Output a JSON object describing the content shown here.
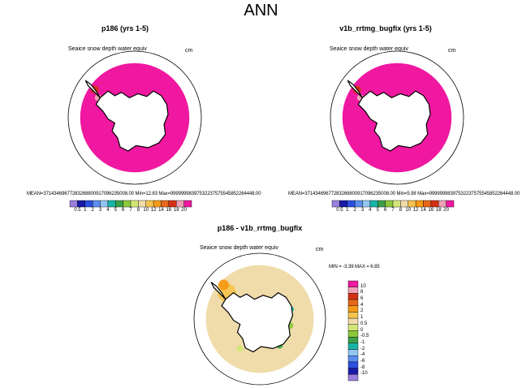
{
  "chart_data": {
    "type": "map",
    "title": "ANN",
    "panels": [
      {
        "name": "p186",
        "title": "p186 (yrs 1-5)",
        "variable": "Seaice snow depth water equiv",
        "units": "cm",
        "stats": {
          "mean_label": "MEAN=",
          "mean": "37143469677283268800917096235008.00",
          "min_label": "Min=",
          "min": "12.83",
          "max_label": "Max=",
          "max": "99999998397532237575545852264448.00"
        },
        "colorbar": {
          "levels": [
            "0.5",
            "1",
            "2",
            "3",
            "4",
            "5",
            "6",
            "7",
            "8",
            "10",
            "12",
            "14",
            "16",
            "18",
            "20"
          ],
          "colors": [
            "#9b7fdc",
            "#1a1aa8",
            "#2b50e0",
            "#5c8ef0",
            "#92c6f2",
            "#17b5a8",
            "#3ca04a",
            "#8cc83c",
            "#d2e678",
            "#f0dcaa",
            "#f5c34f",
            "#f59a18",
            "#e8671a",
            "#d23214",
            "#f0a0b4",
            "#f018a0"
          ]
        }
      },
      {
        "name": "v1b_rrtmg_bugfix",
        "title": "v1b_rrtmg_bugfix (yrs 1-5)",
        "variable": "Seaice snow depth water equiv",
        "units": "cm",
        "stats": {
          "mean_label": "MEAN=",
          "mean": "37143469677283268800917096235008.00",
          "min_label": "Min=",
          "min": "5.98",
          "max_label": "Max=",
          "max": "99999998397532237575545852264448.00"
        },
        "colorbar": {
          "levels": [
            "0.5",
            "1",
            "2",
            "3",
            "4",
            "5",
            "6",
            "7",
            "8",
            "10",
            "12",
            "14",
            "16",
            "18",
            "20"
          ],
          "colors": [
            "#9b7fdc",
            "#1a1aa8",
            "#2b50e0",
            "#5c8ef0",
            "#92c6f2",
            "#17b5a8",
            "#3ca04a",
            "#8cc83c",
            "#d2e678",
            "#f0dcaa",
            "#f5c34f",
            "#f59a18",
            "#e8671a",
            "#d23214",
            "#f0a0b4",
            "#f018a0"
          ]
        }
      },
      {
        "name": "difference",
        "title": "p186 - v1b_rrtmg_bugfix",
        "variable": "Seaice snow depth water equiv",
        "units": "cm",
        "stats": {
          "min_label": "MIN =",
          "min": "-3.39",
          "max_label": "MAX =",
          "max": "6.85"
        },
        "colorbar": {
          "levels": [
            "10",
            "8",
            "6",
            "4",
            "2",
            "1",
            "0.5",
            "0",
            "-0.5",
            "-1",
            "-2",
            "-4",
            "-6",
            "-8",
            "-10"
          ],
          "colors": [
            "#f018a0",
            "#f0a0b4",
            "#d23214",
            "#e8671a",
            "#f59a18",
            "#f5c34f",
            "#f0dcaa",
            "#d2e678",
            "#8cc83c",
            "#3ca04a",
            "#17b5a8",
            "#92c6f2",
            "#5c8ef0",
            "#2b50e0",
            "#1a1aa8",
            "#9b7fdc"
          ]
        }
      }
    ]
  }
}
